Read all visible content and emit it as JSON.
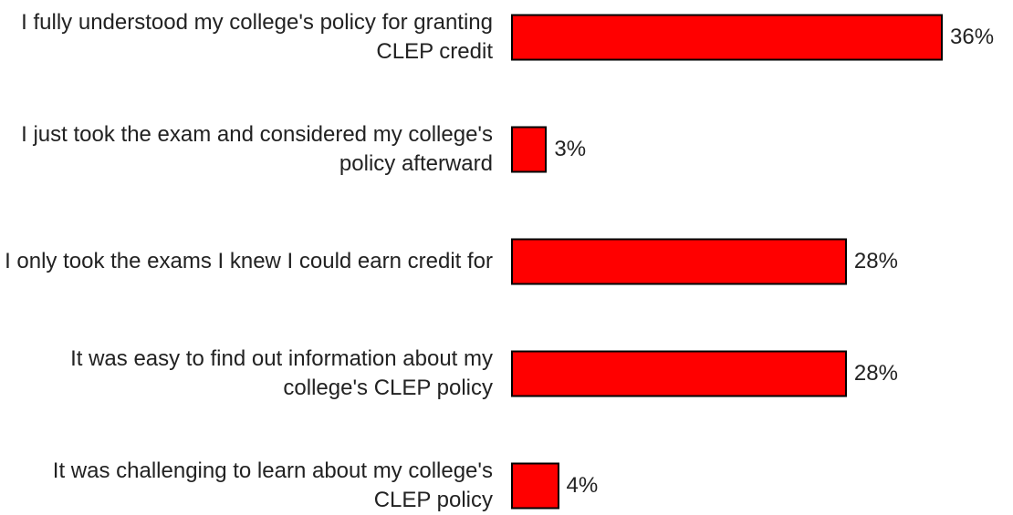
{
  "chart_data": {
    "type": "barh",
    "categories": [
      "I fully understood my college's policy for granting CLEP credit",
      "I just took the exam and considered my college's policy afterward",
      "I only took the exams I knew I could earn credit for",
      "It was easy to find out information about my college's CLEP policy",
      "It was challenging to learn about my college's CLEP policy"
    ],
    "values": [
      36,
      3,
      28,
      28,
      4
    ],
    "value_labels": [
      "36%",
      "3%",
      "28%",
      "28%",
      "4%"
    ],
    "color": "#ff0000"
  }
}
